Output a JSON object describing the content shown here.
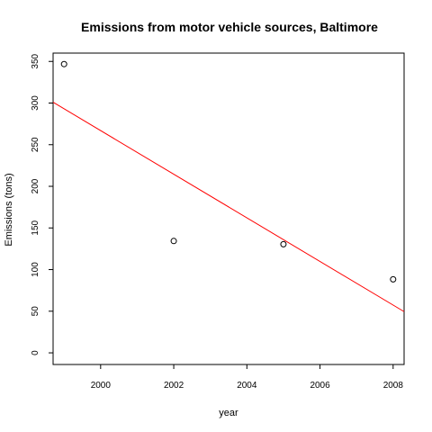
{
  "chart_data": {
    "type": "scatter",
    "title": "Emissions from motor vehicle sources, Baltimore",
    "xlabel": "year",
    "ylabel": "Emissions (tons)",
    "xlim": [
      1998.7,
      2008.3
    ],
    "ylim": [
      -14,
      360
    ],
    "x_ticks": [
      2000,
      2002,
      2004,
      2006,
      2008
    ],
    "y_ticks": [
      0,
      50,
      100,
      150,
      200,
      250,
      300,
      350
    ],
    "points": [
      {
        "x": 1999,
        "y": 346.8
      },
      {
        "x": 2002,
        "y": 134.3
      },
      {
        "x": 2005,
        "y": 130.4
      },
      {
        "x": 2008,
        "y": 88.3
      }
    ],
    "series": [
      {
        "name": "observations",
        "style": "open-circle",
        "color": "#000000"
      },
      {
        "name": "linear fit",
        "style": "line",
        "color": "#ff0000",
        "intercept_at_x": 1998.7,
        "y_at_start": 301,
        "y_at_end": 49.5,
        "x_end": 2008.3
      }
    ]
  }
}
